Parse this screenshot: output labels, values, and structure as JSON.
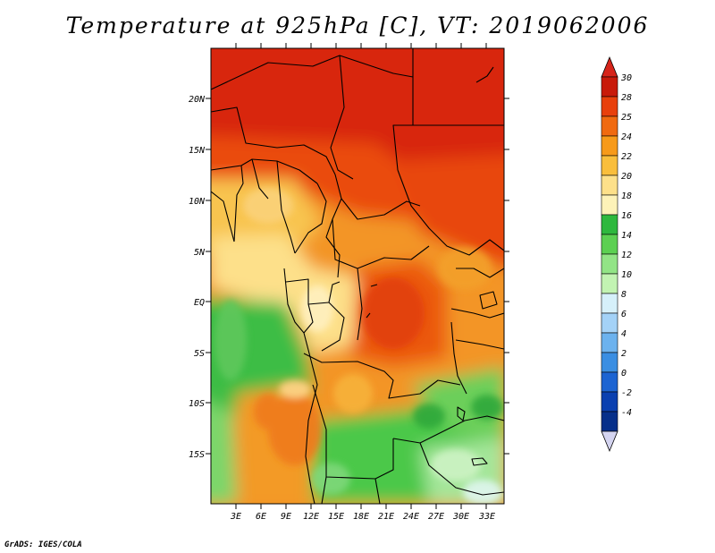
{
  "map": {
    "title": "Temperature at 925hPa [C], VT: 2019062006",
    "credit": "GrADS: IGES/COLA",
    "lat_ticks": [
      "20N",
      "15N",
      "10N",
      "5N",
      "EQ",
      "5S",
      "10S",
      "15S"
    ],
    "lon_ticks": [
      "3E",
      "6E",
      "9E",
      "12E",
      "15E",
      "18E",
      "21E",
      "24E",
      "27E",
      "30E",
      "33E"
    ],
    "variable": "Temperature at 925hPa",
    "units": "C",
    "valid_time": "2019062006"
  },
  "colorbar": {
    "labels": [
      "30",
      "28",
      "25",
      "24",
      "22",
      "20",
      "18",
      "16",
      "14",
      "12",
      "10",
      "8",
      "6",
      "4",
      "2",
      "0",
      "-2",
      "-4"
    ],
    "colors": [
      "#c81a0a",
      "#e8400c",
      "#f06a10",
      "#f79a1a",
      "#f9be3c",
      "#fde08a",
      "#fdf2b8",
      "#2eb83e",
      "#5cd052",
      "#92e486",
      "#c2f3b2",
      "#d6f0fa",
      "#a4d2f7",
      "#6cb2ee",
      "#3a8ee2",
      "#1c64d2",
      "#0a40b0",
      "#062f8a",
      "#0a1a6e"
    ],
    "over_color": "#d6241a",
    "under_color": "#d4d4f0"
  }
}
